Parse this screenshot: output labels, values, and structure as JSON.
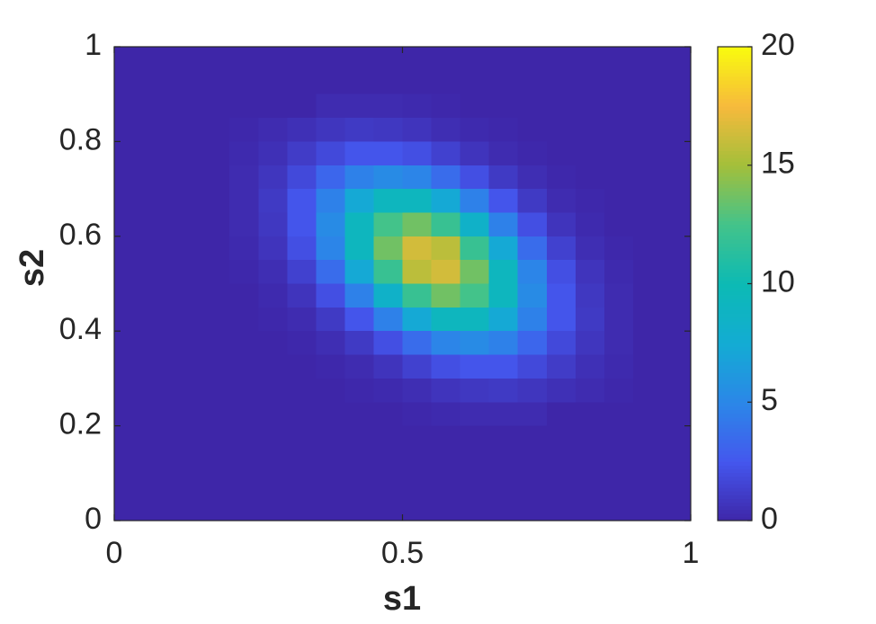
{
  "chart_data": {
    "type": "heatmap",
    "xlabel": "s1",
    "ylabel": "s2",
    "xlim": [
      0,
      1
    ],
    "ylim": [
      0,
      1
    ],
    "xticks": [
      0,
      0.5,
      1
    ],
    "yticks": [
      0,
      0.2,
      0.4,
      0.6,
      0.8,
      1
    ],
    "colormap": "parula",
    "clim": [
      0,
      20
    ],
    "cticks": [
      0,
      5,
      10,
      15,
      20
    ],
    "z": [
      [
        0,
        0,
        0,
        0,
        0,
        0,
        0,
        0,
        0,
        0,
        0,
        0,
        0,
        0,
        0,
        0,
        0,
        0,
        0,
        0
      ],
      [
        0,
        0,
        0,
        0,
        0,
        0,
        0,
        0,
        0,
        0,
        0,
        0,
        0,
        0,
        0,
        0,
        0,
        0,
        0,
        0
      ],
      [
        0,
        0,
        0,
        0,
        0,
        0,
        0,
        0.3,
        0.3,
        0.3,
        0.2,
        0.1,
        0,
        0,
        0,
        0,
        0,
        0,
        0,
        0
      ],
      [
        0,
        0,
        0,
        0,
        0.1,
        0.3,
        0.5,
        0.8,
        1.0,
        0.9,
        0.7,
        0.4,
        0.2,
        0.1,
        0,
        0,
        0,
        0,
        0,
        0
      ],
      [
        0,
        0,
        0,
        0,
        0.2,
        0.5,
        1.1,
        1.8,
        2.4,
        2.4,
        2.1,
        1.4,
        0.7,
        0.3,
        0.1,
        0,
        0,
        0,
        0,
        0
      ],
      [
        0,
        0,
        0,
        0,
        0.3,
        0.8,
        1.8,
        3.3,
        4.7,
        5.3,
        4.9,
        3.6,
        2.1,
        1.0,
        0.4,
        0.1,
        0,
        0,
        0,
        0
      ],
      [
        0,
        0,
        0,
        0,
        0.3,
        1.0,
        2.4,
        4.7,
        7.3,
        9.2,
        9.2,
        7.3,
        4.7,
        2.4,
        1.0,
        0.3,
        0.1,
        0,
        0,
        0
      ],
      [
        0,
        0,
        0,
        0,
        0.3,
        0.9,
        2.4,
        5.3,
        9.2,
        12.5,
        13.7,
        12.0,
        8.4,
        4.7,
        2.1,
        0.7,
        0.2,
        0,
        0,
        0
      ],
      [
        0,
        0,
        0,
        0,
        0.2,
        0.7,
        2.1,
        4.9,
        9.2,
        13.7,
        16.4,
        15.7,
        12.0,
        7.3,
        3.6,
        1.4,
        0.4,
        0.1,
        0,
        0
      ],
      [
        0,
        0,
        0,
        0,
        0.1,
        0.4,
        1.4,
        3.6,
        7.3,
        12.0,
        15.7,
        16.4,
        13.7,
        9.2,
        4.9,
        2.1,
        0.7,
        0.2,
        0,
        0
      ],
      [
        0,
        0,
        0,
        0,
        0,
        0.2,
        0.7,
        2.1,
        4.7,
        8.4,
        12.0,
        13.7,
        12.5,
        9.2,
        5.3,
        2.4,
        0.9,
        0.3,
        0,
        0
      ],
      [
        0,
        0,
        0,
        0,
        0,
        0.1,
        0.3,
        1.0,
        2.4,
        4.7,
        7.3,
        9.2,
        9.2,
        7.3,
        4.7,
        2.4,
        1.0,
        0.3,
        0,
        0
      ],
      [
        0,
        0,
        0,
        0,
        0,
        0,
        0.1,
        0.4,
        1.0,
        2.1,
        3.6,
        4.9,
        5.3,
        4.7,
        3.3,
        1.8,
        0.8,
        0.3,
        0,
        0
      ],
      [
        0,
        0,
        0,
        0,
        0,
        0,
        0,
        0.1,
        0.3,
        0.7,
        1.4,
        2.1,
        2.4,
        2.4,
        1.8,
        1.1,
        0.5,
        0.2,
        0,
        0
      ],
      [
        0,
        0,
        0,
        0,
        0,
        0,
        0,
        0,
        0.1,
        0.2,
        0.4,
        0.7,
        0.9,
        1.0,
        0.8,
        0.5,
        0.3,
        0.1,
        0,
        0
      ],
      [
        0,
        0,
        0,
        0,
        0,
        0,
        0,
        0,
        0,
        0,
        0.1,
        0.2,
        0.3,
        0.3,
        0.3,
        0,
        0,
        0,
        0,
        0
      ],
      [
        0,
        0,
        0,
        0,
        0,
        0,
        0,
        0,
        0,
        0,
        0,
        0,
        0,
        0,
        0,
        0,
        0,
        0,
        0,
        0
      ],
      [
        0,
        0,
        0,
        0,
        0,
        0,
        0,
        0,
        0,
        0,
        0,
        0,
        0,
        0,
        0,
        0,
        0,
        0,
        0,
        0
      ],
      [
        0,
        0,
        0,
        0,
        0,
        0,
        0,
        0,
        0,
        0,
        0,
        0,
        0,
        0,
        0,
        0,
        0,
        0,
        0,
        0
      ],
      [
        0,
        0,
        0,
        0,
        0,
        0,
        0,
        0,
        0,
        0,
        0,
        0,
        0,
        0,
        0,
        0,
        0,
        0,
        0,
        0
      ]
    ]
  }
}
